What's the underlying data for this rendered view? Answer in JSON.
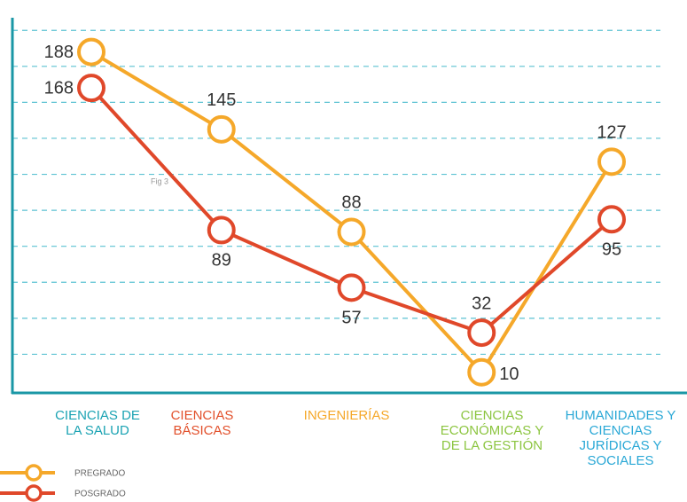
{
  "chart_data": {
    "type": "line",
    "categories": [
      "CIENCIAS DE LA SALUD",
      "CIENCIAS BÁSICAS",
      "INGENIERÍAS",
      "CIENCIAS ECONÓMICAS Y DE LA GESTIÓN",
      "HUMANIDADES Y CIENCIAS JURÍDICAS Y SOCIALES"
    ],
    "category_colors": [
      "#1ba3b3",
      "#e2502b",
      "#f5a82a",
      "#8cc540",
      "#2aa8d6"
    ],
    "series": [
      {
        "name": "PREGRADO",
        "color": "#f5a82a",
        "values": [
          188,
          145,
          88,
          10,
          127
        ]
      },
      {
        "name": "POSGRADO",
        "color": "#e0482a",
        "values": [
          168,
          89,
          57,
          32,
          95
        ]
      }
    ],
    "annotation": "Fig 3",
    "ylim": [
      0,
      208
    ],
    "yticks": [
      20,
      40,
      60,
      80,
      100,
      120,
      140,
      160,
      180,
      200
    ],
    "grid": true
  }
}
